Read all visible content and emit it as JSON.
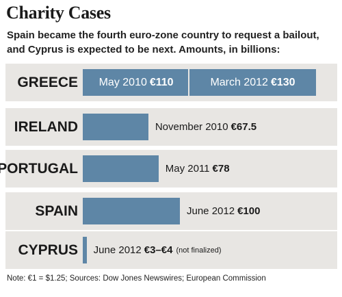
{
  "title": "Charity Cases",
  "subtitle": "Spain became the fourth euro-zone country to request a bailout, and Cyprus is expected to be next. Amounts, in billions:",
  "note": "Note: €1 = $1.25; Sources: Dow Jones Newswires; European Commission",
  "chart_data": {
    "type": "bar",
    "orientation": "horizontal",
    "unit": "€ billions",
    "rows": [
      {
        "country": "GREECE",
        "segments": [
          {
            "date": "May 2010",
            "amount_label": "€110",
            "value": 110
          },
          {
            "date": "March 2012",
            "amount_label": "€130",
            "value": 130
          }
        ]
      },
      {
        "country": "IRELAND",
        "segments": [
          {
            "date": "November 2010",
            "amount_label": "€67.5",
            "value": 67.5
          }
        ]
      },
      {
        "country": "PORTUGAL",
        "segments": [
          {
            "date": "May 2011",
            "amount_label": "€78",
            "value": 78
          }
        ]
      },
      {
        "country": "SPAIN",
        "segments": [
          {
            "date": "June 2012",
            "amount_label": "€100",
            "value": 100
          }
        ]
      },
      {
        "country": "CYPRUS",
        "segments": [
          {
            "date": "June 2012",
            "amount_label": "€3–€4",
            "value": 4,
            "aside": "(not finalized)"
          }
        ]
      }
    ]
  }
}
